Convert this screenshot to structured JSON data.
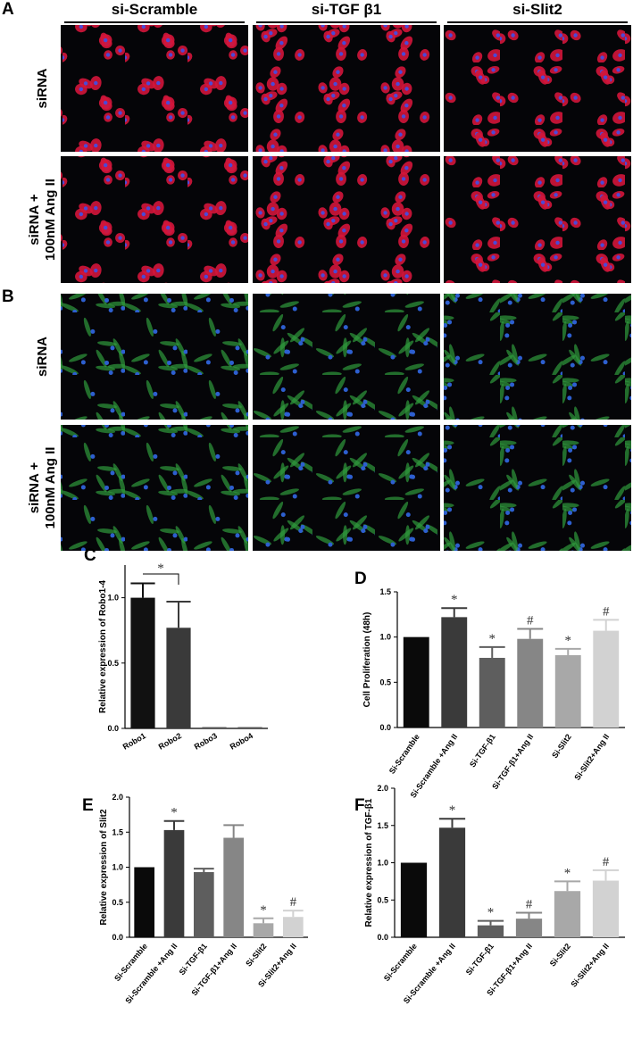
{
  "panel_a": {
    "label": "A",
    "columns": [
      "si-Scramble",
      "si-TGF β1",
      "si-Slit2"
    ],
    "rows": [
      [
        "siRNA"
      ],
      [
        "siRNA +",
        "100nM Ang II"
      ]
    ]
  },
  "panel_b": {
    "label": "B",
    "rows": [
      [
        "siRNA"
      ],
      [
        "siRNA +",
        "100nM Ang II"
      ]
    ]
  },
  "chart_data": [
    {
      "type": "bar",
      "panel_label": "C",
      "ylabel": "Relative expression of Robo1-4",
      "categories": [
        "Robo1",
        "Robo2",
        "Robo3",
        "Robo4"
      ],
      "values": [
        1.0,
        0.77,
        0.01,
        0.01
      ],
      "errors": [
        0.11,
        0.2,
        0,
        0
      ],
      "colors": [
        "#111111",
        "#3a3a3a",
        "#555555",
        "#555555"
      ],
      "bracket_label": "*",
      "ylim": [
        0,
        1.25
      ],
      "yticks": [
        {
          "value": 0,
          "label": "0.0"
        },
        {
          "value": 0.5,
          "label": "0.5"
        },
        {
          "value": 1,
          "label": "1.0"
        }
      ]
    },
    {
      "type": "bar",
      "panel_label": "D",
      "ylabel": "Cell Proliferation (48h)",
      "categories": [
        "Si-Scramble",
        "Si-Scramble +Ang II",
        "Si-TGF-β1",
        "Si-TGF-β1+Ang II",
        "Si-Slit2",
        "Si-Slit2+Ang II"
      ],
      "values": [
        1.0,
        1.22,
        0.77,
        0.98,
        0.8,
        1.07
      ],
      "errors": [
        0,
        0.1,
        0.12,
        0.11,
        0.07,
        0.12
      ],
      "annotations": [
        null,
        "*",
        "*",
        "#",
        "*",
        "#"
      ],
      "colors": [
        "#0a0a0a",
        "#3a3a3a",
        "#5e5e5e",
        "#868686",
        "#a8a8a8",
        "#d2d2d2"
      ],
      "ylim": [
        0,
        1.5
      ],
      "yticks": [
        {
          "value": 0,
          "label": "0.0"
        },
        {
          "value": 0.5,
          "label": "0.5"
        },
        {
          "value": 1,
          "label": "1.0"
        },
        {
          "value": 1.5,
          "label": "1.5"
        }
      ]
    },
    {
      "type": "bar",
      "panel_label": "E",
      "ylabel": "Relative expression of Slit2",
      "categories": [
        "Si-Scramble",
        "Si-Scramble +Ang II",
        "Si-TGF-β1",
        "Si-TGF-β1+Ang II",
        "Si-Slit2",
        "Si-Slit2+Ang II"
      ],
      "values": [
        1.0,
        1.53,
        0.93,
        1.42,
        0.2,
        0.29
      ],
      "errors": [
        0,
        0.13,
        0.05,
        0.18,
        0.07,
        0.09
      ],
      "annotations": [
        null,
        "*",
        null,
        null,
        "*",
        "#"
      ],
      "colors": [
        "#0a0a0a",
        "#3a3a3a",
        "#5e5e5e",
        "#868686",
        "#a8a8a8",
        "#d2d2d2"
      ],
      "ylim": [
        0,
        2
      ],
      "yticks": [
        {
          "value": 0,
          "label": "0.0"
        },
        {
          "value": 0.5,
          "label": "0.5"
        },
        {
          "value": 1,
          "label": "1.0"
        },
        {
          "value": 1.5,
          "label": "1.5"
        },
        {
          "value": 2,
          "label": "2.0"
        }
      ]
    },
    {
      "type": "bar",
      "panel_label": "F",
      "ylabel": "Relative expression of TGF-β1",
      "categories": [
        "Si-Scramble",
        "Si-Scramble +Ang II",
        "Si-TGF-β1",
        "Si-TGF-β1+Ang II",
        "Si-Slit2",
        "Si-Slit2+Ang II"
      ],
      "values": [
        1.0,
        1.47,
        0.16,
        0.25,
        0.62,
        0.76
      ],
      "errors": [
        0,
        0.12,
        0.06,
        0.08,
        0.13,
        0.14
      ],
      "annotations": [
        null,
        "*",
        "*",
        "#",
        "*",
        "#"
      ],
      "colors": [
        "#0a0a0a",
        "#3a3a3a",
        "#5e5e5e",
        "#868686",
        "#a8a8a8",
        "#d2d2d2"
      ],
      "ylim": [
        0,
        2
      ],
      "yticks": [
        {
          "value": 0,
          "label": "0.0"
        },
        {
          "value": 0.5,
          "label": "0.5"
        },
        {
          "value": 1,
          "label": "1.0"
        },
        {
          "value": 1.5,
          "label": "1.5"
        },
        {
          "value": 2,
          "label": "2.0"
        }
      ]
    }
  ]
}
